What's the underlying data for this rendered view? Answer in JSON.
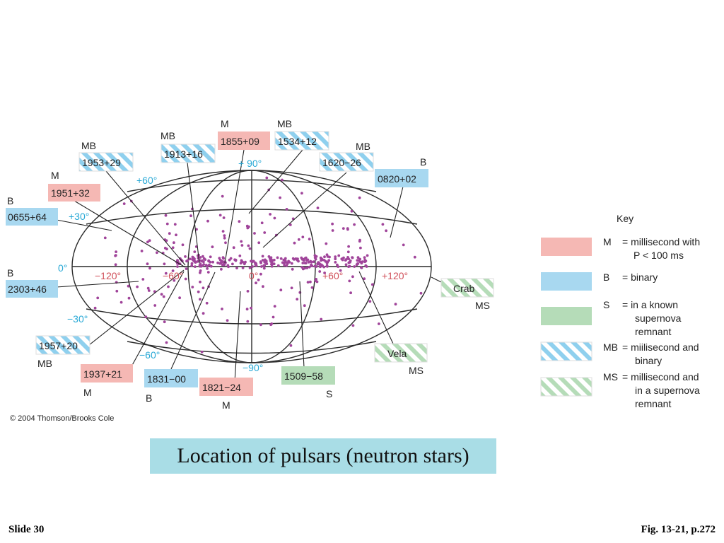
{
  "caption": "Location of pulsars (neutron stars)",
  "slide_label": "Slide 30",
  "figure_ref": "Fig. 13-21, p.272",
  "copyright": "© 2004 Thomson/Brooks Cole",
  "colors": {
    "M": "#f5b8b4",
    "B": "#a8d8f0",
    "S": "#b5dcb8",
    "dot": "#a0449a",
    "grid": "#2a2a2a",
    "blue_text": "#29a9d6",
    "red_text": "#d0505a"
  },
  "latitude_labels": [
    "+ 90°",
    "+60°",
    "+30°",
    "0°",
    "−30°",
    "−60°",
    "−90°"
  ],
  "longitude_labels": [
    "−120°",
    "−60°",
    "0°",
    "+60°",
    "+120°"
  ],
  "key": {
    "title": "Key",
    "entries": [
      {
        "code": "M",
        "type": "M",
        "lines": [
          "= millisecond with",
          "P < 100 ms"
        ]
      },
      {
        "code": "B",
        "type": "B",
        "lines": [
          "= binary"
        ]
      },
      {
        "code": "S",
        "type": "S",
        "lines": [
          "= in a known",
          "supernova",
          "remnant"
        ]
      },
      {
        "code": "MB",
        "type": "MB",
        "lines": [
          "= miilisecond and",
          "binary"
        ]
      },
      {
        "code": "MS",
        "type": "MS",
        "lines": [
          "= millisecond and",
          "in a supernova",
          "remnant"
        ]
      }
    ]
  },
  "pulsars": [
    {
      "id": "1855+09",
      "type": "M",
      "code": "M"
    },
    {
      "id": "1534+12",
      "type": "MB",
      "code": "MB"
    },
    {
      "id": "1913+16",
      "type": "MB",
      "code": "MB"
    },
    {
      "id": "1953+29",
      "type": "MB",
      "code": "MB"
    },
    {
      "id": "1620−26",
      "type": "MB",
      "code": "MB"
    },
    {
      "id": "0820+02",
      "type": "B",
      "code": "B"
    },
    {
      "id": "1951+32",
      "type": "M",
      "code": "M"
    },
    {
      "id": "0655+64",
      "type": "B",
      "code": "B"
    },
    {
      "id": "2303+46",
      "type": "B",
      "code": "B"
    },
    {
      "id": "Crab",
      "type": "MS",
      "code": "MS"
    },
    {
      "id": "1957+20",
      "type": "MB",
      "code": "MB"
    },
    {
      "id": "Vela",
      "type": "MS",
      "code": "MS"
    },
    {
      "id": "1937+21",
      "type": "M",
      "code": "M"
    },
    {
      "id": "1831−00",
      "type": "B",
      "code": "B"
    },
    {
      "id": "1821−24",
      "type": "M",
      "code": "M"
    },
    {
      "id": "1509−58",
      "type": "S",
      "code": "S"
    }
  ]
}
